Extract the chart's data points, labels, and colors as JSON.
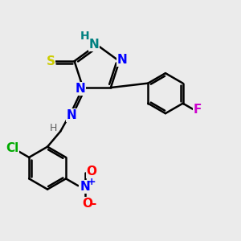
{
  "bg_color": "#ebebeb",
  "bond_color": "#000000",
  "bond_width": 1.8,
  "atom_colors": {
    "N": "#0000ff",
    "S": "#cccc00",
    "N_teal": "#008080",
    "H_gray": "#606060",
    "Cl": "#00aa00",
    "F": "#cc00cc",
    "O": "#ff0000",
    "C": "#000000"
  },
  "font_size": 11
}
